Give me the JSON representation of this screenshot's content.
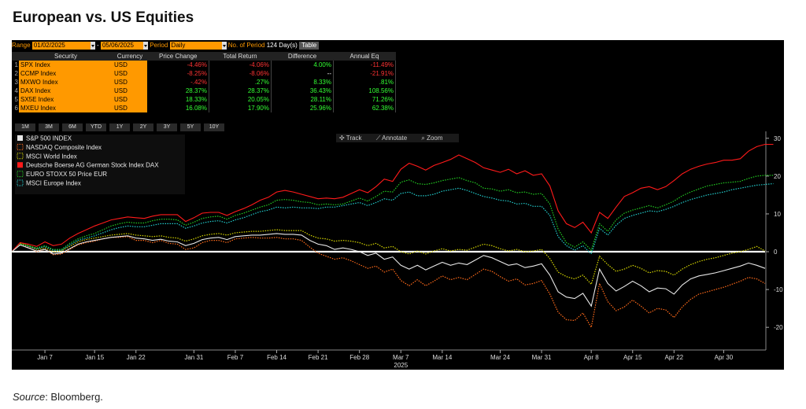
{
  "page_title": "European vs. US Equities",
  "source_label": "Source",
  "source_text": ": Bloomberg.",
  "controls": {
    "range_label": "Range",
    "start_date": "01/02/2025",
    "dash": "-",
    "end_date": "05/06/2025",
    "period_label": "Period",
    "period_value": "Daily",
    "num_period_label": "No. of Period",
    "num_period_value": "124 Day(s)",
    "table_button": "Table"
  },
  "table": {
    "headers": [
      "Security",
      "Currency",
      "Price Change",
      "Total Return",
      "Difference",
      "Annual Eq"
    ],
    "rows": [
      {
        "idx": "1",
        "security": "SPX Index",
        "currency": "USD",
        "price_change": "-4.46%",
        "total_return": "-4.06%",
        "difference": "4.00%",
        "annual_eq": "-11.49%",
        "colors": [
          "neg",
          "neg",
          "pos",
          "neg"
        ]
      },
      {
        "idx": "2",
        "security": "CCMP Index",
        "currency": "USD",
        "price_change": "-8.25%",
        "total_return": "-8.06%",
        "difference": "--",
        "annual_eq": "-21.91%",
        "colors": [
          "neg",
          "neg",
          "neu",
          "neg"
        ]
      },
      {
        "idx": "3",
        "security": "MXWO Index",
        "currency": "USD",
        "price_change": "-.42%",
        "total_return": ".27%",
        "difference": "8.33%",
        "annual_eq": ".81%",
        "colors": [
          "neg",
          "pos",
          "pos",
          "pos"
        ]
      },
      {
        "idx": "4",
        "security": "DAX Index",
        "currency": "USD",
        "price_change": "28.37%",
        "total_return": "28.37%",
        "difference": "36.43%",
        "annual_eq": "108.56%",
        "colors": [
          "pos",
          "pos",
          "pos",
          "pos"
        ]
      },
      {
        "idx": "5",
        "security": "SX5E Index",
        "currency": "USD",
        "price_change": "18.33%",
        "total_return": "20.05%",
        "difference": "28.11%",
        "annual_eq": "71.26%",
        "colors": [
          "pos",
          "pos",
          "pos",
          "pos"
        ]
      },
      {
        "idx": "6",
        "security": "MXEU Index",
        "currency": "USD",
        "price_change": "16.08%",
        "total_return": "17.90%",
        "difference": "25.96%",
        "annual_eq": "62.38%",
        "colors": [
          "pos",
          "pos",
          "pos",
          "pos"
        ]
      }
    ]
  },
  "period_buttons": [
    "1M",
    "3M",
    "6M",
    "YTD",
    "1Y",
    "2Y",
    "3Y",
    "5Y",
    "10Y"
  ],
  "toolbar": {
    "track": "Track",
    "annotate": "Annotate",
    "zoom": "Zoom"
  },
  "chart_data": {
    "type": "line",
    "ylim": [
      -26,
      31
    ],
    "y_ticks": [
      30,
      20,
      10,
      0,
      -10,
      -20
    ],
    "x_tick_labels": [
      "Jan 7",
      "Jan 15",
      "Jan 22",
      "Jan 31",
      "Feb 7",
      "Feb 14",
      "Feb 21",
      "Feb 28",
      "Mar 7",
      "Mar 14",
      "Mar 24",
      "Mar 31",
      "Apr 8",
      "Apr 15",
      "Apr 22",
      "Apr 30"
    ],
    "x_tick_index": [
      4,
      10,
      15,
      22,
      27,
      32,
      37,
      42,
      47,
      52,
      59,
      64,
      70,
      75,
      80,
      86
    ],
    "year_label": "2025",
    "legend_position": "top-left",
    "zero_line": true,
    "series": [
      {
        "name": "S&P 500 INDEX",
        "color": "#e8e8e8",
        "style": "solid",
        "marker": "square",
        "values": [
          0,
          1.8,
          1.0,
          0.2,
          0.6,
          -0.6,
          -0.4,
          0.8,
          2.0,
          2.6,
          3.0,
          3.4,
          3.8,
          4.0,
          4.2,
          3.6,
          3.4,
          3.0,
          3.3,
          2.8,
          2.6,
          1.6,
          2.2,
          3.2,
          3.6,
          3.8,
          3.2,
          4.0,
          4.2,
          4.4,
          4.4,
          4.6,
          4.8,
          4.6,
          4.6,
          4.4,
          3.0,
          2.0,
          1.6,
          0.6,
          1.0,
          0.6,
          0.0,
          -1.0,
          -0.4,
          -2.0,
          -1.4,
          -3.6,
          -4.6,
          -3.6,
          -4.8,
          -3.8,
          -2.8,
          -3.6,
          -3.0,
          -3.4,
          -2.2,
          -1.0,
          -1.6,
          -2.6,
          -3.6,
          -3.2,
          -4.2,
          -3.8,
          -3.2,
          -6.2,
          -10.6,
          -12.0,
          -12.4,
          -11.0,
          -14.4,
          -4.6,
          -8.4,
          -10.4,
          -9.2,
          -7.8,
          -9.0,
          -10.6,
          -9.6,
          -9.8,
          -11.2,
          -8.8,
          -7.2,
          -6.4,
          -6.0,
          -5.6,
          -5.0,
          -4.4,
          -3.8,
          -3.0,
          -3.6,
          -4.4
        ]
      },
      {
        "name": "NASDAQ Composite Index",
        "color": "#ff6a1a",
        "style": "dotted",
        "marker": "dotted-square",
        "values": [
          0,
          2.0,
          1.2,
          0.0,
          0.6,
          -0.8,
          -0.6,
          0.6,
          1.8,
          2.4,
          2.8,
          3.4,
          3.8,
          3.8,
          4.0,
          3.0,
          3.0,
          2.4,
          3.0,
          2.2,
          2.0,
          0.6,
          1.0,
          2.4,
          3.0,
          3.0,
          2.4,
          3.4,
          3.6,
          3.8,
          3.6,
          3.6,
          3.8,
          3.4,
          3.4,
          3.0,
          1.2,
          -0.4,
          -1.2,
          -2.0,
          -1.6,
          -2.4,
          -3.4,
          -4.4,
          -3.8,
          -5.4,
          -4.6,
          -7.6,
          -9.0,
          -7.4,
          -9.0,
          -7.8,
          -6.4,
          -7.4,
          -6.8,
          -7.4,
          -6.0,
          -4.6,
          -5.2,
          -6.6,
          -7.8,
          -7.2,
          -8.8,
          -8.4,
          -7.6,
          -11.2,
          -16.0,
          -18.0,
          -18.2,
          -16.2,
          -20.0,
          -8.4,
          -13.2,
          -15.6,
          -14.6,
          -12.8,
          -14.4,
          -16.2,
          -15.0,
          -15.4,
          -17.4,
          -14.6,
          -12.6,
          -11.2,
          -10.6,
          -10.0,
          -9.4,
          -8.6,
          -7.8,
          -6.8,
          -7.2,
          -8.4
        ]
      },
      {
        "name": "MSCI World Index",
        "color": "#d8d800",
        "style": "dotted",
        "marker": "dotted-square",
        "values": [
          0,
          2.2,
          1.6,
          0.6,
          1.0,
          0.0,
          0.2,
          1.4,
          2.6,
          3.2,
          3.6,
          4.0,
          4.4,
          4.6,
          4.8,
          4.4,
          4.2,
          4.0,
          4.2,
          3.8,
          3.6,
          2.8,
          3.4,
          4.2,
          4.6,
          4.8,
          4.4,
          5.0,
          5.2,
          5.4,
          5.4,
          5.6,
          5.8,
          5.6,
          5.6,
          5.6,
          4.4,
          3.6,
          3.4,
          2.8,
          3.0,
          2.8,
          2.4,
          1.6,
          2.2,
          1.0,
          1.4,
          0.0,
          -0.6,
          0.2,
          -0.6,
          0.2,
          0.8,
          0.2,
          0.6,
          0.4,
          1.2,
          2.0,
          1.6,
          0.8,
          0.2,
          0.6,
          0.0,
          0.2,
          0.6,
          -1.8,
          -5.4,
          -6.6,
          -7.2,
          -6.2,
          -8.6,
          -1.2,
          -3.4,
          -5.2,
          -4.6,
          -3.6,
          -4.4,
          -5.6,
          -5.0,
          -5.2,
          -6.2,
          -4.6,
          -3.4,
          -2.6,
          -2.0,
          -1.6,
          -1.0,
          -0.4,
          0.0,
          0.6,
          1.4,
          0.2
        ]
      },
      {
        "name": "Deutsche Boerse AG German Stock Index DAX",
        "color": "#ff1a1a",
        "style": "solid",
        "marker": "red-square",
        "values": [
          0,
          2.4,
          2.0,
          1.4,
          2.6,
          1.6,
          2.0,
          3.6,
          4.8,
          5.8,
          6.8,
          7.6,
          8.4,
          8.8,
          9.2,
          9.0,
          8.8,
          9.4,
          9.8,
          9.8,
          9.8,
          8.0,
          9.0,
          10.2,
          10.4,
          10.4,
          9.6,
          10.6,
          11.4,
          12.4,
          13.6,
          14.4,
          15.8,
          16.2,
          15.8,
          15.2,
          14.6,
          14.0,
          14.2,
          14.0,
          14.4,
          15.4,
          16.4,
          15.6,
          17.2,
          19.2,
          18.6,
          21.8,
          23.4,
          22.6,
          21.6,
          22.8,
          23.6,
          24.4,
          25.6,
          24.6,
          23.6,
          22.2,
          21.6,
          21.0,
          21.8,
          20.6,
          21.4,
          20.2,
          20.6,
          17.4,
          10.8,
          7.4,
          6.4,
          7.8,
          5.0,
          10.4,
          8.8,
          11.8,
          14.6,
          15.6,
          16.8,
          17.2,
          16.4,
          17.2,
          18.8,
          20.6,
          21.8,
          22.6,
          23.2,
          23.6,
          24.2,
          24.2,
          24.6,
          26.6,
          27.8,
          28.4,
          28.4
        ]
      },
      {
        "name": "EURO STOXX 50 Price EUR",
        "color": "#22cc22",
        "style": "dotted",
        "marker": "dotted-square",
        "values": [
          0,
          2.0,
          1.6,
          1.0,
          1.6,
          0.6,
          0.6,
          2.2,
          3.4,
          4.2,
          4.8,
          5.8,
          6.8,
          7.4,
          7.8,
          7.6,
          7.6,
          8.2,
          8.6,
          8.6,
          8.4,
          7.0,
          7.8,
          8.8,
          9.2,
          9.4,
          8.6,
          9.6,
          10.2,
          11.0,
          11.8,
          12.4,
          13.6,
          13.8,
          13.6,
          13.2,
          13.0,
          12.4,
          12.6,
          12.4,
          12.6,
          13.4,
          14.2,
          13.4,
          14.6,
          16.0,
          15.8,
          18.4,
          19.0,
          18.0,
          17.8,
          18.2,
          18.8,
          19.2,
          19.6,
          18.8,
          18.2,
          16.8,
          16.6,
          16.0,
          16.4,
          15.6,
          15.8,
          15.2,
          15.4,
          12.6,
          6.0,
          2.4,
          1.2,
          2.6,
          0.4,
          7.4,
          5.4,
          8.4,
          10.2,
          11.0,
          11.6,
          12.2,
          11.6,
          12.4,
          13.4,
          14.8,
          15.8,
          16.6,
          17.4,
          17.8,
          18.2,
          18.4,
          18.6,
          19.4,
          20.0,
          20.2,
          20.2
        ]
      },
      {
        "name": "MSCI Europe Index",
        "color": "#22cccc",
        "style": "dotted",
        "marker": "dotted-square",
        "values": [
          0,
          2.0,
          1.4,
          0.8,
          1.4,
          0.4,
          0.4,
          1.8,
          3.0,
          3.6,
          4.2,
          5.0,
          5.8,
          6.4,
          6.8,
          6.6,
          6.6,
          7.0,
          7.4,
          7.4,
          7.4,
          6.2,
          6.8,
          7.6,
          8.0,
          8.2,
          7.6,
          8.4,
          9.0,
          9.8,
          10.6,
          11.0,
          11.8,
          11.6,
          11.8,
          11.6,
          11.6,
          11.4,
          11.8,
          11.8,
          12.2,
          12.6,
          13.0,
          12.2,
          13.0,
          14.0,
          13.6,
          15.4,
          15.8,
          14.8,
          14.8,
          15.2,
          16.0,
          16.4,
          16.8,
          16.2,
          15.4,
          14.6,
          14.2,
          13.6,
          13.4,
          12.6,
          12.8,
          12.0,
          12.0,
          9.6,
          4.0,
          1.6,
          0.4,
          1.6,
          -0.6,
          6.2,
          4.4,
          7.0,
          8.8,
          9.6,
          10.2,
          10.8,
          10.6,
          11.2,
          12.0,
          13.0,
          13.8,
          14.4,
          15.0,
          15.4,
          15.8,
          16.4,
          16.8,
          17.2,
          17.6,
          17.8,
          18.0
        ]
      }
    ]
  }
}
